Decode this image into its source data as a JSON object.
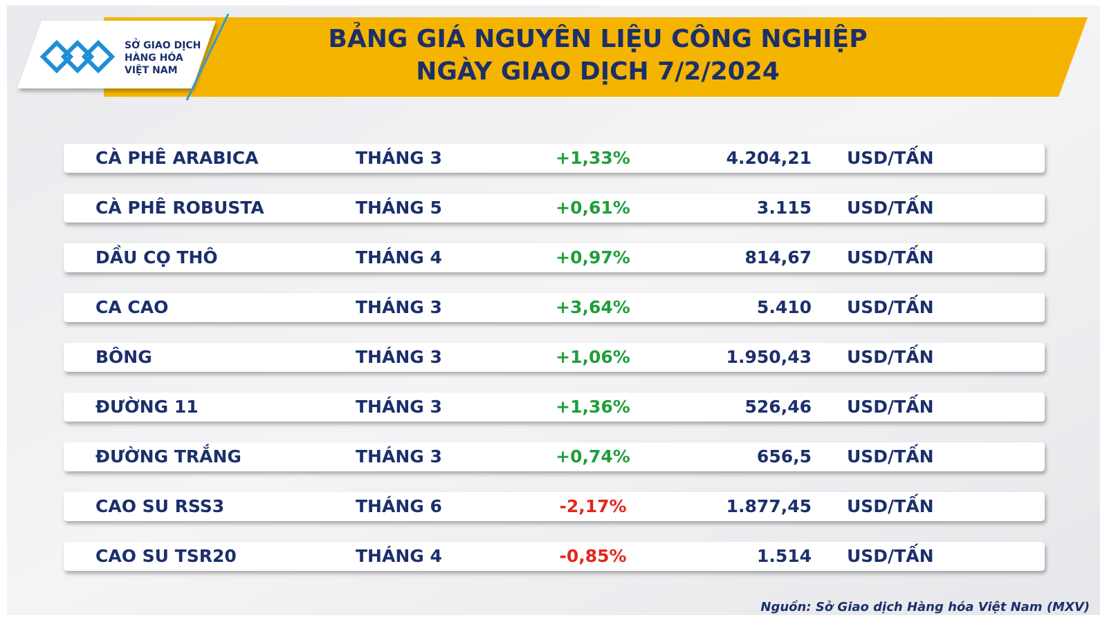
{
  "header": {
    "title_lines": [
      "BẢNG GIÁ NGUYÊN LIỆU CÔNG NGHIỆP",
      "NGÀY GIAO DỊCH 7/2/2024"
    ],
    "logo_lines": [
      "SỞ GIAO DỊCH",
      "HÀNG HÓA",
      "VIỆT NAM"
    ]
  },
  "table": {
    "up_color": "#1f9e3a",
    "down_color": "#e3261f",
    "rows": [
      [
        "CÀ PHÊ ARABICA",
        "THÁNG 3",
        "+1,33%",
        "4.204,21",
        "USD/TẤN"
      ],
      [
        "CÀ PHÊ ROBUSTA",
        "THÁNG 5",
        "+0,61%",
        "3.115",
        "USD/TẤN"
      ],
      [
        "DẦU CỌ THÔ",
        "THÁNG 4",
        "+0,97%",
        "814,67",
        "USD/TẤN"
      ],
      [
        "CA CAO",
        "THÁNG 3",
        "+3,64%",
        "5.410",
        "USD/TẤN"
      ],
      [
        "BÔNG",
        "THÁNG 3",
        "+1,06%",
        "1.950,43",
        "USD/TẤN"
      ],
      [
        "ĐƯỜNG 11",
        "THÁNG 3",
        "+1,36%",
        "526,46",
        "USD/TẤN"
      ],
      [
        "ĐƯỜNG TRẮNG",
        "THÁNG 3",
        "+0,74%",
        "656,5",
        "USD/TẤN"
      ],
      [
        "CAO SU RSS3",
        "THÁNG 6",
        "-2,17%",
        "1.877,45",
        "USD/TẤN"
      ],
      [
        "CAO SU TSR20",
        "THÁNG 4",
        "-0,85%",
        "1.514",
        "USD/TẤN"
      ]
    ]
  },
  "source": "Nguồn: Sở Giao dịch Hàng hóa Việt Nam (MXV)"
}
